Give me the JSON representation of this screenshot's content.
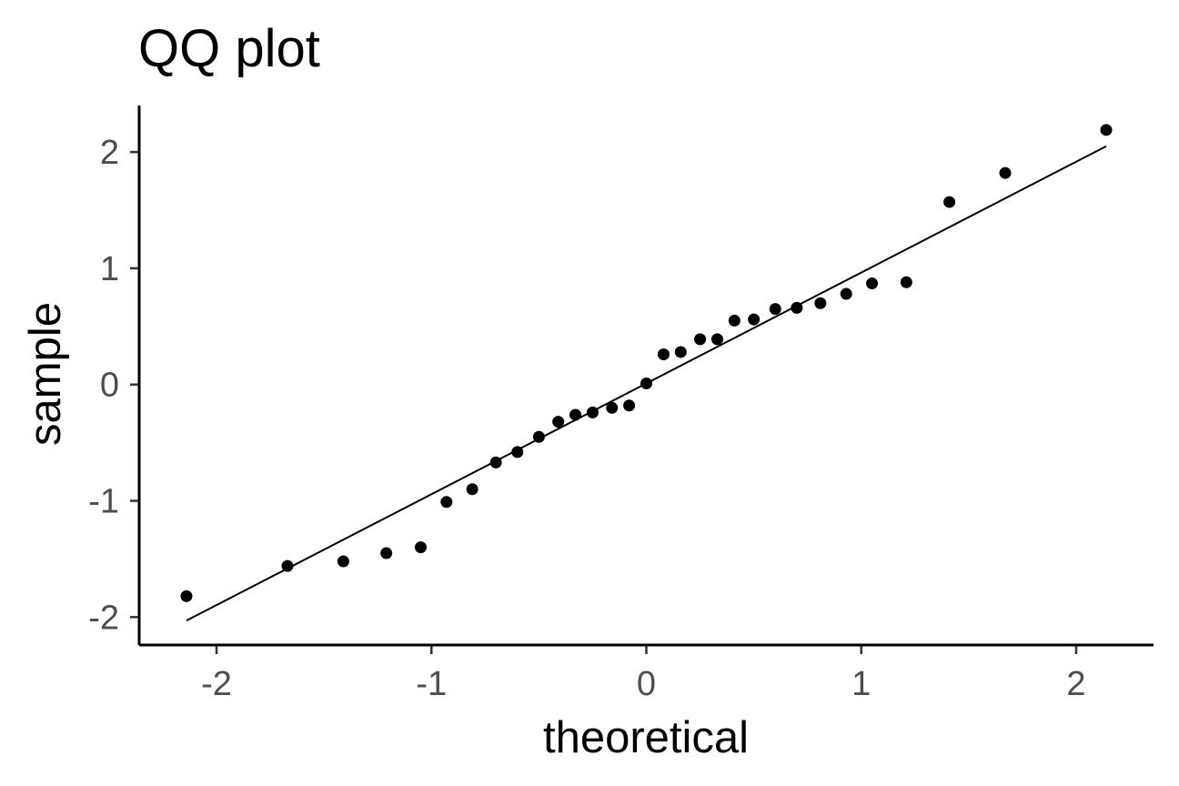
{
  "chart_data": {
    "type": "scatter",
    "title": "QQ plot",
    "xlabel": "theoretical",
    "ylabel": "sample",
    "xlim": [
      -2.36,
      2.36
    ],
    "ylim": [
      -2.24,
      2.4
    ],
    "x_ticks": [
      -2,
      -1,
      0,
      1,
      2
    ],
    "y_ticks": [
      -2,
      -1,
      0,
      1,
      2
    ],
    "x_tick_labels": [
      "-2",
      "-1",
      "0",
      "1",
      "2"
    ],
    "y_tick_labels": [
      "-2",
      "-1",
      "0",
      "1",
      "2"
    ],
    "grid": false,
    "legend": "none",
    "point_color": "#000000",
    "line_color": "#000000",
    "reference_line": {
      "x": [
        -2.14,
        2.14
      ],
      "y": [
        -2.03,
        2.05
      ]
    },
    "series": [
      {
        "x": [
          -2.14,
          -1.67,
          -1.41,
          -1.21,
          -1.05,
          -0.93,
          -0.81,
          -0.7,
          -0.6,
          -0.5,
          -0.41,
          -0.33,
          -0.25,
          -0.16,
          -0.08,
          0.0,
          0.08,
          0.16,
          0.25,
          0.33,
          0.41,
          0.5,
          0.6,
          0.7,
          0.81,
          0.93,
          1.05,
          1.21,
          1.41,
          1.67,
          2.14
        ],
        "y": [
          -1.82,
          -1.56,
          -1.52,
          -1.45,
          -1.4,
          -1.01,
          -0.9,
          -0.67,
          -0.58,
          -0.45,
          -0.32,
          -0.26,
          -0.24,
          -0.2,
          -0.18,
          0.01,
          0.26,
          0.28,
          0.39,
          0.39,
          0.55,
          0.56,
          0.65,
          0.66,
          0.7,
          0.78,
          0.87,
          0.88,
          1.57,
          1.82,
          2.19
        ]
      }
    ]
  }
}
